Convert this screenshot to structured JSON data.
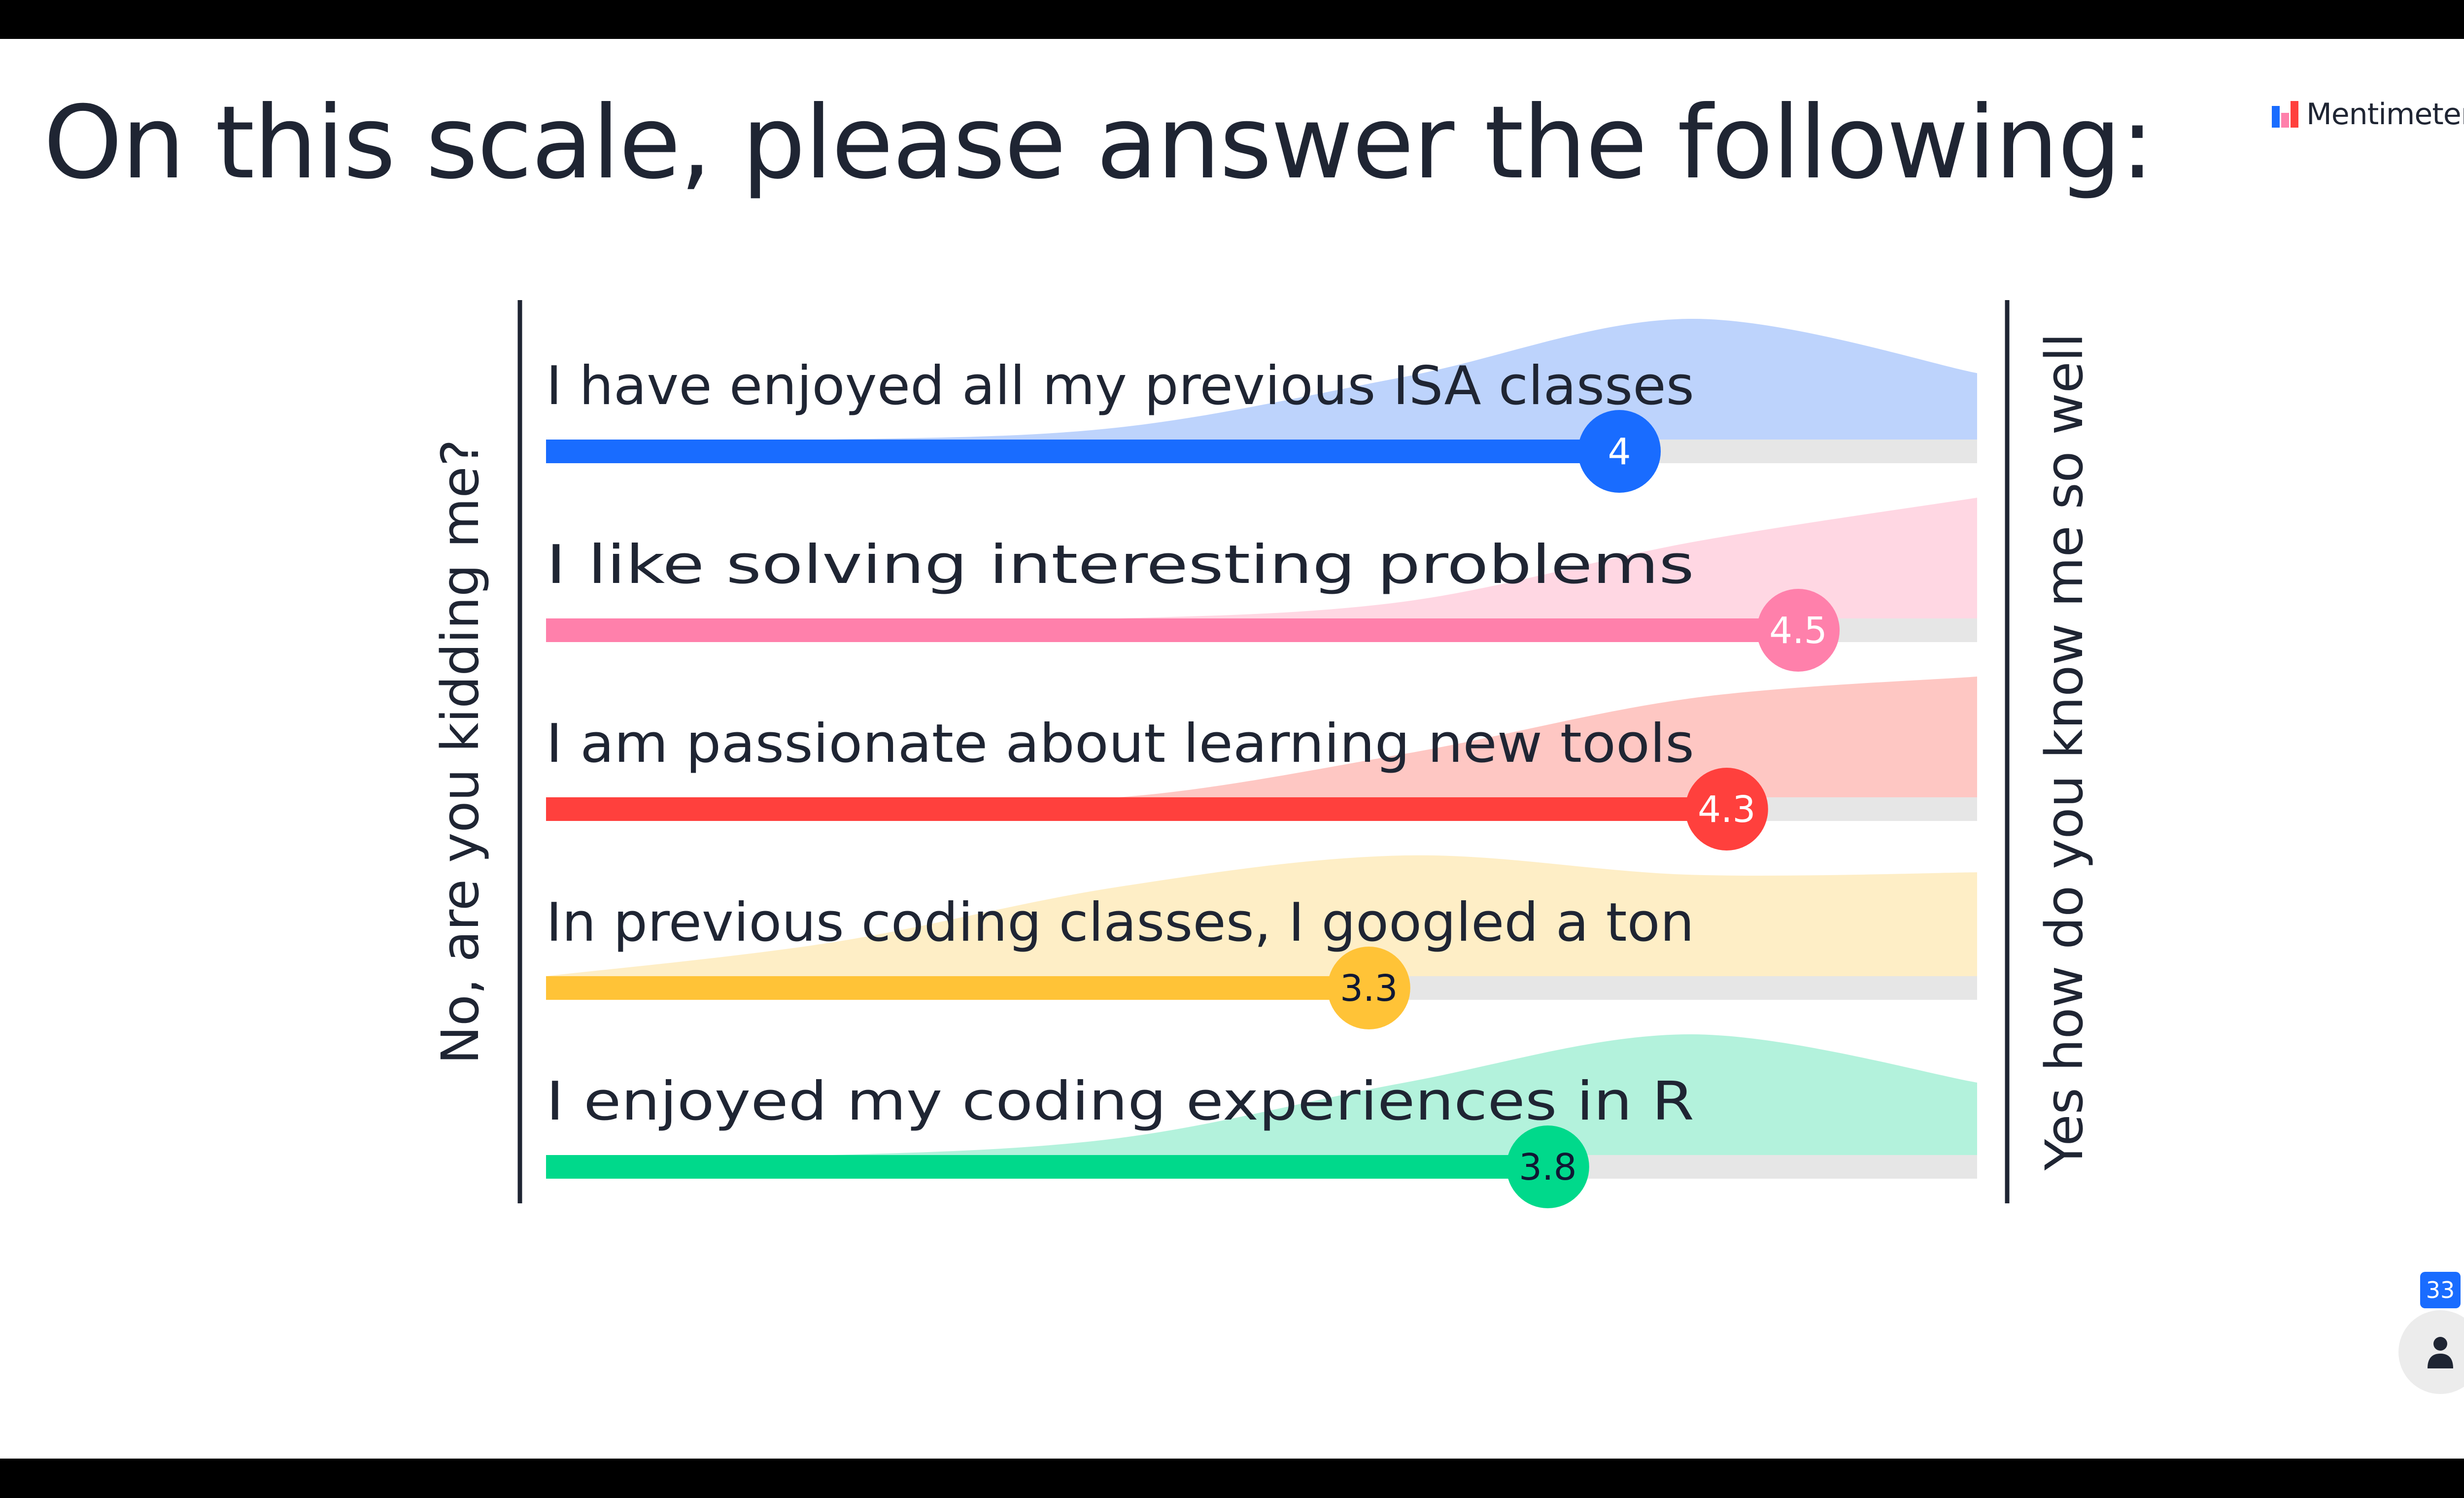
{
  "slide": {
    "title": "On this scale, please answer the following:",
    "brand": "Mentimeter"
  },
  "chart_data": {
    "type": "bar",
    "orientation": "horizontal",
    "subtype": "scale-rating",
    "scale_min": 1,
    "scale_max": 5,
    "left_label": "No, are you kidding me?",
    "right_label": "Yes how do you know me so well",
    "grid": false,
    "statements": [
      {
        "label": "I have enjoyed all my previous ISA classes",
        "average": 4,
        "average_label": "4",
        "color": "#196cff",
        "light_color": "#bdd3fc",
        "badge_text_color": "#ffffff",
        "distribution": [
          0.0,
          0.0,
          0.1,
          0.52,
          1.0,
          0.55
        ]
      },
      {
        "label": "I like solving interesting problems",
        "average": 4.5,
        "average_label": "4.5",
        "color": "#ff80ab",
        "light_color": "#ffd7e3",
        "badge_text_color": "#ffffff",
        "distribution": [
          0.0,
          0.0,
          0.0,
          0.14,
          0.63,
          1.0
        ]
      },
      {
        "label": "I am passionate about learning new tools",
        "average": 4.3,
        "average_label": "4.3",
        "color": "#ff403d",
        "light_color": "#fec7c3",
        "badge_text_color": "#ffffff",
        "distribution": [
          0.0,
          0.0,
          0.0,
          0.36,
          0.82,
          1.0
        ]
      },
      {
        "label": "In previous coding classes, I googled a ton",
        "average": 3.3,
        "average_label": "3.3",
        "color": "#ffc337",
        "light_color": "#feeec6",
        "badge_text_color": "#101834",
        "distribution": [
          0.0,
          0.28,
          0.74,
          1.0,
          0.84,
          0.86
        ]
      },
      {
        "label": "I enjoyed my coding experiences in R",
        "average": 3.8,
        "average_label": "3.8",
        "color": "#00d98b",
        "light_color": "#b3f2dc",
        "badge_text_color": "#101834",
        "distribution": [
          0.0,
          0.0,
          0.14,
          0.6,
          1.0,
          0.6
        ]
      }
    ]
  },
  "participants": {
    "count": "33",
    "icon": "person-icon"
  }
}
